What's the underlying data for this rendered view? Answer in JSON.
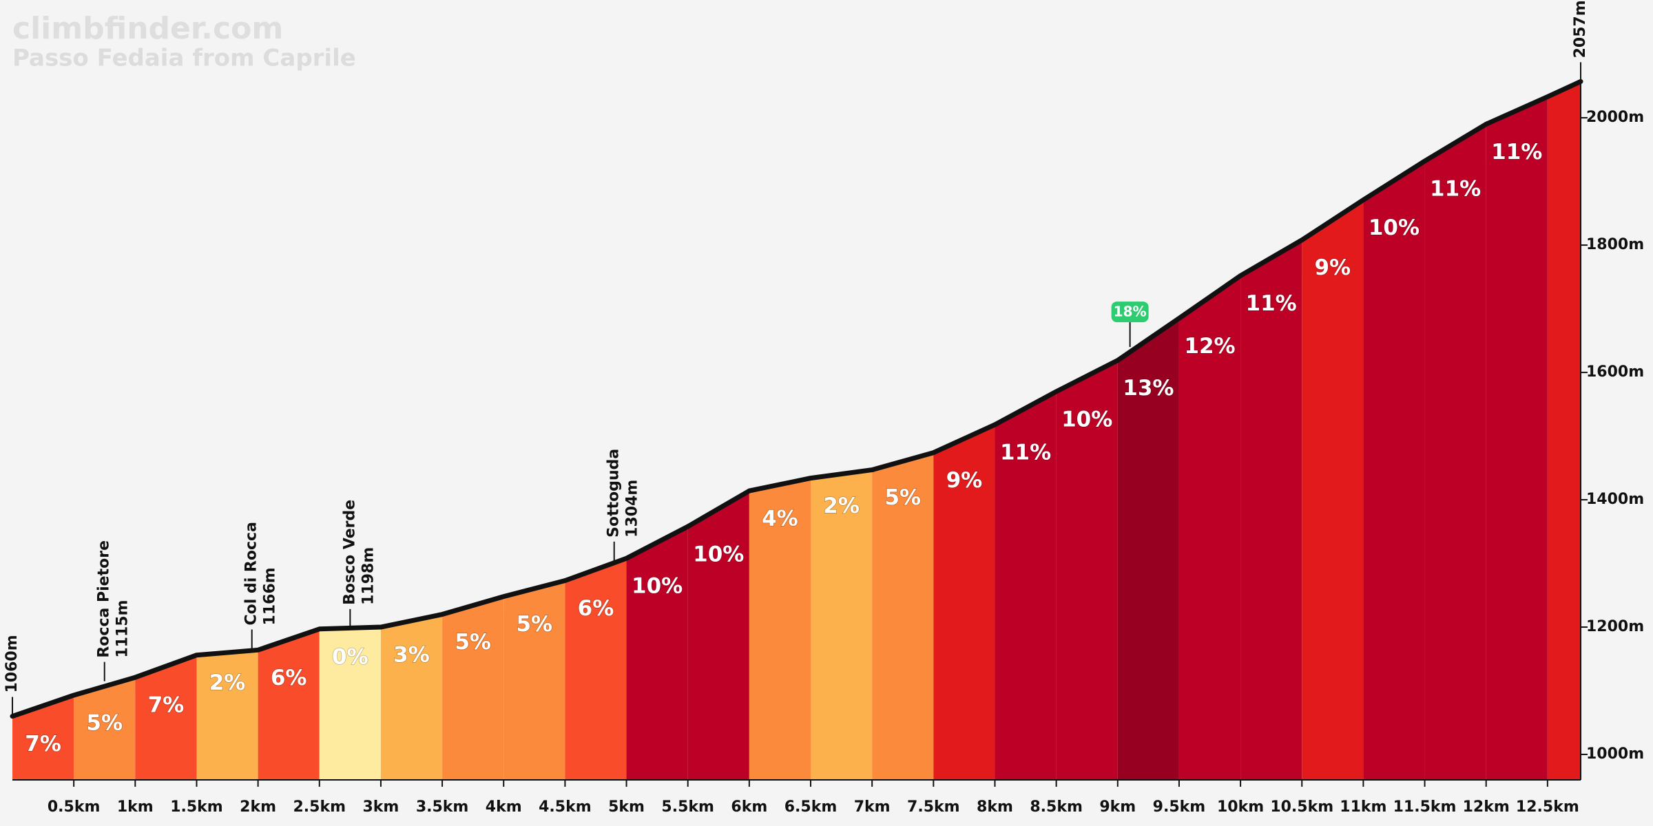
{
  "chart_data": {
    "type": "area",
    "title": "climbfinder.com",
    "subtitle": "Passo Fedaia from Caprile",
    "x": [
      0,
      0.5,
      1,
      1.5,
      2,
      2.5,
      3,
      3.5,
      4,
      4.5,
      5,
      5.5,
      6,
      6.5,
      7,
      7.5,
      8,
      8.5,
      9,
      9.5,
      10,
      10.5,
      11,
      11.5,
      12,
      12.5,
      12.77
    ],
    "values": [
      1060,
      1093,
      1121,
      1156,
      1164,
      1197,
      1200,
      1220,
      1248,
      1273,
      1308,
      1358,
      1414,
      1434,
      1447,
      1474,
      1518,
      1570,
      1619,
      1685,
      1752,
      1808,
      1871,
      1932,
      1990,
      2033,
      2057
    ],
    "color": "#111111",
    "segments": {
      "values": [
        7,
        5,
        7,
        2,
        6,
        0,
        3,
        5,
        5,
        6,
        10,
        10,
        4,
        2,
        5,
        9,
        11,
        10,
        13,
        12,
        11,
        9,
        10,
        11,
        11,
        null
      ],
      "value_labels": [
        "7%",
        "5%",
        "7%",
        "2%",
        "6%",
        "0%",
        "3%",
        "5%",
        "5%",
        "6%",
        "10%",
        "10%",
        "4%",
        "2%",
        "5%",
        "9%",
        "11%",
        "10%",
        "13%",
        "12%",
        "11%",
        "9%",
        "10%",
        "11%",
        "11%",
        null
      ],
      "colors": [
        "#f94c2b",
        "#fb8a3c",
        "#f94c2b",
        "#fdb14c",
        "#f94c2b",
        "#feeb9f",
        "#fdb14c",
        "#fb8a3c",
        "#fb8a3c",
        "#f94c2b",
        "#bd0026",
        "#bd0026",
        "#fb8a3c",
        "#fdb14c",
        "#fb8a3c",
        "#e31a1c",
        "#bd0026",
        "#bd0026",
        "#970021",
        "#bd0026",
        "#bd0026",
        "#e31a1c",
        "#bd0026",
        "#bd0026",
        "#bd0026",
        "#e31a1c"
      ]
    },
    "xlim": [
      0,
      12.77
    ],
    "ylim": [
      960,
      2185
    ],
    "xticks": [
      {
        "value": 0.5,
        "label": "0.5km"
      },
      {
        "value": 1,
        "label": "1km"
      },
      {
        "value": 1.5,
        "label": "1.5km"
      },
      {
        "value": 2,
        "label": "2km"
      },
      {
        "value": 2.5,
        "label": "2.5km"
      },
      {
        "value": 3,
        "label": "3km"
      },
      {
        "value": 3.5,
        "label": "3.5km"
      },
      {
        "value": 4,
        "label": "4km"
      },
      {
        "value": 4.5,
        "label": "4.5km"
      },
      {
        "value": 5,
        "label": "5km"
      },
      {
        "value": 5.5,
        "label": "5.5km"
      },
      {
        "value": 6,
        "label": "6km"
      },
      {
        "value": 6.5,
        "label": "6.5km"
      },
      {
        "value": 7,
        "label": "7km"
      },
      {
        "value": 7.5,
        "label": "7.5km"
      },
      {
        "value": 8,
        "label": "8km"
      },
      {
        "value": 8.5,
        "label": "8.5km"
      },
      {
        "value": 9,
        "label": "9km"
      },
      {
        "value": 9.5,
        "label": "9.5km"
      },
      {
        "value": 10,
        "label": "10km"
      },
      {
        "value": 10.5,
        "label": "10.5km"
      },
      {
        "value": 11,
        "label": "11km"
      },
      {
        "value": 11.5,
        "label": "11.5km"
      },
      {
        "value": 12,
        "label": "12km"
      },
      {
        "value": 12.5,
        "label": "12.5km"
      }
    ],
    "yticks": [
      {
        "value": 1000,
        "label": "1000m"
      },
      {
        "value": 1200,
        "label": "1200m"
      },
      {
        "value": 1400,
        "label": "1400m"
      },
      {
        "value": 1600,
        "label": "1600m"
      },
      {
        "value": 1800,
        "label": "1800m"
      },
      {
        "value": 2000,
        "label": "2000m"
      }
    ],
    "endpoints": [
      {
        "x": 0,
        "value": 1060,
        "label": "1060m"
      },
      {
        "x": 12.77,
        "value": 2057,
        "label": "2057m"
      }
    ],
    "landmarks": [
      {
        "x": 0.75,
        "value": 1115,
        "name": "Rocca Pietore",
        "label": "1115m"
      },
      {
        "x": 1.95,
        "value": 1166,
        "name": "Col di Rocca",
        "label": "1166m"
      },
      {
        "x": 2.75,
        "value": 1198,
        "name": "Bosco Verde",
        "label": "1198m"
      },
      {
        "x": 4.9,
        "value": 1304,
        "name": "Sottoguda",
        "label": "1304m"
      }
    ],
    "steepest": {
      "x": 9.1,
      "value": 1640,
      "label": "18%",
      "color": "#2ecc71"
    }
  }
}
